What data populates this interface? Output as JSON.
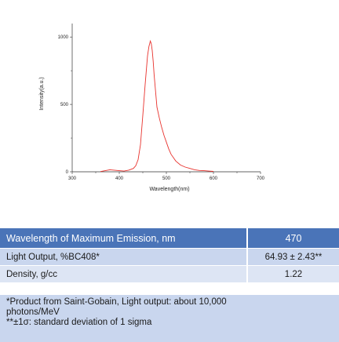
{
  "chart_data": {
    "type": "line",
    "xlabel": "Wavelength(nm)",
    "ylabel": "Intensity(a.u.)",
    "xlim": [
      300,
      700
    ],
    "ylim": [
      0,
      1100
    ],
    "xticks": [
      "300",
      "400",
      "500",
      "600",
      "700"
    ],
    "yticks": [
      "0",
      "500",
      "1000"
    ],
    "grid": false,
    "legend": "none",
    "line_color": "#e8322d",
    "x": [
      360,
      380,
      400,
      410,
      420,
      430,
      435,
      440,
      445,
      450,
      455,
      460,
      463,
      466,
      468,
      470,
      472,
      474,
      476,
      478,
      480,
      485,
      490,
      495,
      500,
      505,
      510,
      520,
      530,
      540,
      550,
      560,
      570,
      580,
      590,
      600
    ],
    "y": [
      2,
      15,
      8,
      5,
      12,
      25,
      45,
      90,
      200,
      420,
      650,
      860,
      930,
      970,
      950,
      900,
      820,
      720,
      640,
      560,
      480,
      400,
      330,
      270,
      220,
      170,
      130,
      80,
      50,
      35,
      25,
      15,
      10,
      8,
      5,
      3
    ]
  },
  "table": {
    "rows": [
      {
        "label": "Wavelength of Maximum Emission, nm",
        "value": "470"
      },
      {
        "label": "Light Output, %BC408*",
        "value": "64.93 ± 2.43**"
      },
      {
        "label": "Density, g/cc",
        "value": "1.22"
      }
    ]
  },
  "notes": {
    "line1": "*Product from Saint-Gobain, Light output: about 10,000",
    "line2": "photons/MeV",
    "line3": "**±1σ: standard deviation of 1 sigma"
  }
}
